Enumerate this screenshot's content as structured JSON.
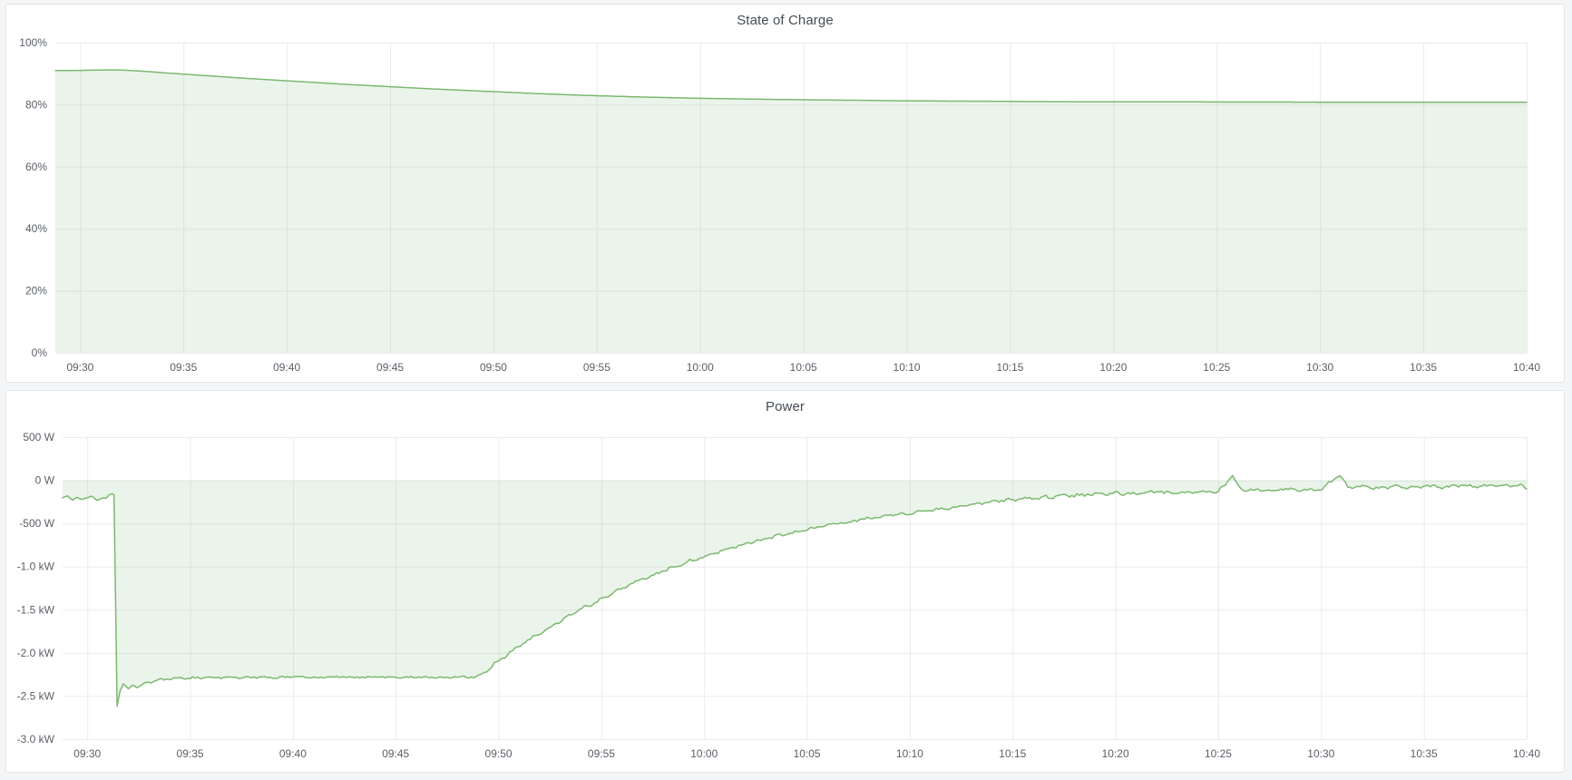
{
  "page": {
    "background": "#f4f5f6",
    "panel_background": "#ffffff",
    "panel_border": "#e3e4e6",
    "grid_color": "#ebebed",
    "axis_text_color": "#5a5f66",
    "title_color": "#464c54",
    "accent_green": "#7cb870"
  },
  "panels": [
    {
      "title": "State of Charge"
    },
    {
      "title": "Power"
    }
  ],
  "chart_data": [
    {
      "type": "area",
      "title": "State of Charge",
      "x_unit": "minutes after 09:30",
      "xlim": [
        -1.2,
        70
      ],
      "ylim": [
        0,
        100
      ],
      "baseline": 0,
      "grid": true,
      "legend": "none",
      "line_color": "#7cb870",
      "fill_color": "rgba(124,184,112,0.15)",
      "x_ticks": [
        {
          "t": 0,
          "label": "09:30"
        },
        {
          "t": 5,
          "label": "09:35"
        },
        {
          "t": 10,
          "label": "09:40"
        },
        {
          "t": 15,
          "label": "09:45"
        },
        {
          "t": 20,
          "label": "09:50"
        },
        {
          "t": 25,
          "label": "09:55"
        },
        {
          "t": 30,
          "label": "10:00"
        },
        {
          "t": 35,
          "label": "10:05"
        },
        {
          "t": 40,
          "label": "10:10"
        },
        {
          "t": 45,
          "label": "10:15"
        },
        {
          "t": 50,
          "label": "10:20"
        },
        {
          "t": 55,
          "label": "10:25"
        },
        {
          "t": 60,
          "label": "10:30"
        },
        {
          "t": 65,
          "label": "10:35"
        },
        {
          "t": 70,
          "label": "10:40"
        }
      ],
      "y_ticks": [
        {
          "v": 100,
          "label": "100%"
        },
        {
          "v": 80,
          "label": "80%"
        },
        {
          "v": 60,
          "label": "60%"
        },
        {
          "v": 40,
          "label": "40%"
        },
        {
          "v": 20,
          "label": "20%"
        },
        {
          "v": 0,
          "label": "0%"
        }
      ],
      "noise_segments": [],
      "series": [
        {
          "name": "State of Charge (%)",
          "points": [
            [
              -1.2,
              91.0
            ],
            [
              0,
              91.05
            ],
            [
              0.8,
              91.15
            ],
            [
              1.6,
              91.2
            ],
            [
              2.2,
              91.1
            ],
            [
              3,
              90.8
            ],
            [
              4,
              90.3
            ],
            [
              5,
              89.85
            ],
            [
              6,
              89.4
            ],
            [
              7,
              88.95
            ],
            [
              8,
              88.5
            ],
            [
              9,
              88.1
            ],
            [
              10,
              87.7
            ],
            [
              11,
              87.3
            ],
            [
              12,
              86.9
            ],
            [
              13,
              86.5
            ],
            [
              14,
              86.15
            ],
            [
              15,
              85.8
            ],
            [
              16,
              85.45
            ],
            [
              17,
              85.1
            ],
            [
              18,
              84.8
            ],
            [
              19,
              84.5
            ],
            [
              20,
              84.2
            ],
            [
              21,
              83.9
            ],
            [
              22,
              83.6
            ],
            [
              23,
              83.35
            ],
            [
              24,
              83.1
            ],
            [
              25,
              82.9
            ],
            [
              26,
              82.7
            ],
            [
              27,
              82.5
            ],
            [
              28,
              82.35
            ],
            [
              29,
              82.2
            ],
            [
              30,
              82.05
            ],
            [
              31,
              81.95
            ],
            [
              32,
              81.85
            ],
            [
              33,
              81.75
            ],
            [
              34,
              81.65
            ],
            [
              35,
              81.6
            ],
            [
              36,
              81.5
            ],
            [
              37,
              81.45
            ],
            [
              38,
              81.4
            ],
            [
              39,
              81.3
            ],
            [
              40,
              81.25
            ],
            [
              42,
              81.15
            ],
            [
              44,
              81.1
            ],
            [
              46,
              81.0
            ],
            [
              48,
              80.95
            ],
            [
              50,
              80.95
            ],
            [
              52,
              80.9
            ],
            [
              54,
              80.9
            ],
            [
              56,
              80.85
            ],
            [
              58,
              80.85
            ],
            [
              60,
              80.8
            ],
            [
              62,
              80.8
            ],
            [
              64,
              80.8
            ],
            [
              66,
              80.8
            ],
            [
              68,
              80.8
            ],
            [
              70,
              80.8
            ]
          ]
        }
      ]
    },
    {
      "type": "area",
      "title": "Power",
      "x_unit": "minutes after 09:30",
      "xlim": [
        -1.2,
        70
      ],
      "ylim": [
        -3000,
        500
      ],
      "baseline": 0,
      "grid": true,
      "legend": "none",
      "line_color": "#7cb870",
      "fill_color": "rgba(124,184,112,0.15)",
      "x_ticks": [
        {
          "t": 0,
          "label": "09:30"
        },
        {
          "t": 5,
          "label": "09:35"
        },
        {
          "t": 10,
          "label": "09:40"
        },
        {
          "t": 15,
          "label": "09:45"
        },
        {
          "t": 20,
          "label": "09:50"
        },
        {
          "t": 25,
          "label": "09:55"
        },
        {
          "t": 30,
          "label": "10:00"
        },
        {
          "t": 35,
          "label": "10:05"
        },
        {
          "t": 40,
          "label": "10:10"
        },
        {
          "t": 45,
          "label": "10:15"
        },
        {
          "t": 50,
          "label": "10:20"
        },
        {
          "t": 55,
          "label": "10:25"
        },
        {
          "t": 60,
          "label": "10:30"
        },
        {
          "t": 65,
          "label": "10:35"
        },
        {
          "t": 70,
          "label": "10:40"
        }
      ],
      "y_ticks": [
        {
          "v": 500,
          "label": "500 W"
        },
        {
          "v": 0,
          "label": "0 W"
        },
        {
          "v": -500,
          "label": "-500 W"
        },
        {
          "v": -1000,
          "label": "-1.0 kW"
        },
        {
          "v": -1500,
          "label": "-1.5 kW"
        },
        {
          "v": -2000,
          "label": "-2.0 kW"
        },
        {
          "v": -2500,
          "label": "-2.5 kW"
        },
        {
          "v": -3000,
          "label": "-3.0 kW"
        }
      ],
      "noise_segments": [
        [
          -1.2,
          1.25,
          16
        ],
        [
          1.5,
          18.8,
          18
        ],
        [
          19.3,
          43,
          26
        ],
        [
          43,
          55.4,
          30
        ],
        [
          56.0,
          70,
          26
        ]
      ],
      "series": [
        {
          "name": "Power (W)",
          "points": [
            [
              -1.2,
              -205
            ],
            [
              -0.95,
              -185
            ],
            [
              -0.7,
              -230
            ],
            [
              -0.5,
              -200
            ],
            [
              -0.25,
              -215
            ],
            [
              0,
              -200
            ],
            [
              0.2,
              -185
            ],
            [
              0.45,
              -225
            ],
            [
              0.7,
              -200
            ],
            [
              0.9,
              -205
            ],
            [
              1.05,
              -175
            ],
            [
              1.2,
              -150
            ],
            [
              1.3,
              -170
            ],
            [
              1.45,
              -2620
            ],
            [
              1.6,
              -2440
            ],
            [
              1.75,
              -2360
            ],
            [
              2.0,
              -2420
            ],
            [
              2.2,
              -2380
            ],
            [
              2.5,
              -2400
            ],
            [
              2.8,
              -2350
            ],
            [
              3.2,
              -2330
            ],
            [
              3.6,
              -2310
            ],
            [
              4.2,
              -2295
            ],
            [
              5,
              -2290
            ],
            [
              6,
              -2285
            ],
            [
              7,
              -2290
            ],
            [
              8,
              -2280
            ],
            [
              9,
              -2285
            ],
            [
              10,
              -2278
            ],
            [
              11,
              -2288
            ],
            [
              12,
              -2280
            ],
            [
              13,
              -2285
            ],
            [
              14,
              -2278
            ],
            [
              15,
              -2284
            ],
            [
              16,
              -2280
            ],
            [
              17,
              -2285
            ],
            [
              18,
              -2280
            ],
            [
              18.8,
              -2282
            ],
            [
              19.3,
              -2230
            ],
            [
              19.8,
              -2130
            ],
            [
              20.3,
              -2040
            ],
            [
              20.8,
              -1960
            ],
            [
              21.3,
              -1880
            ],
            [
              21.8,
              -1800
            ],
            [
              22.3,
              -1730
            ],
            [
              22.8,
              -1660
            ],
            [
              23.3,
              -1590
            ],
            [
              23.8,
              -1520
            ],
            [
              24.3,
              -1460
            ],
            [
              24.8,
              -1400
            ],
            [
              25.3,
              -1340
            ],
            [
              25.8,
              -1280
            ],
            [
              26.3,
              -1220
            ],
            [
              26.8,
              -1170
            ],
            [
              27.3,
              -1120
            ],
            [
              27.8,
              -1070
            ],
            [
              28.3,
              -1020
            ],
            [
              28.8,
              -975
            ],
            [
              29.3,
              -935
            ],
            [
              29.8,
              -895
            ],
            [
              30.3,
              -855
            ],
            [
              30.8,
              -820
            ],
            [
              31.3,
              -785
            ],
            [
              31.8,
              -750
            ],
            [
              32.3,
              -720
            ],
            [
              32.8,
              -690
            ],
            [
              33.3,
              -660
            ],
            [
              33.8,
              -632
            ],
            [
              34.3,
              -605
            ],
            [
              34.8,
              -580
            ],
            [
              35.3,
              -556
            ],
            [
              35.8,
              -532
            ],
            [
              36.3,
              -510
            ],
            [
              36.8,
              -490
            ],
            [
              37.3,
              -470
            ],
            [
              37.8,
              -452
            ],
            [
              38.3,
              -435
            ],
            [
              38.8,
              -418
            ],
            [
              39.3,
              -402
            ],
            [
              39.8,
              -388
            ],
            [
              40.5,
              -365
            ],
            [
              41.2,
              -342
            ],
            [
              42,
              -318
            ],
            [
              42.8,
              -295
            ],
            [
              43.4,
              -272
            ],
            [
              44,
              -250
            ],
            [
              44.8,
              -232
            ],
            [
              45.6,
              -215
            ],
            [
              46.4,
              -200
            ],
            [
              47.2,
              -188
            ],
            [
              48,
              -176
            ],
            [
              49,
              -163
            ],
            [
              50,
              -150
            ],
            [
              51,
              -160
            ],
            [
              52,
              -135
            ],
            [
              53,
              -150
            ],
            [
              54,
              -125
            ],
            [
              55,
              -140
            ],
            [
              55.7,
              55
            ],
            [
              56.1,
              -115
            ],
            [
              56.8,
              -105
            ],
            [
              57.6,
              -120
            ],
            [
              58.4,
              -100
            ],
            [
              59.2,
              -112
            ],
            [
              60,
              -100
            ],
            [
              60.9,
              65
            ],
            [
              61.3,
              -85
            ],
            [
              62,
              -75
            ],
            [
              62.8,
              -88
            ],
            [
              63.6,
              -70
            ],
            [
              64.4,
              -82
            ],
            [
              65.2,
              -68
            ],
            [
              66,
              -78
            ],
            [
              66.8,
              -62
            ],
            [
              67.6,
              -74
            ],
            [
              68.4,
              -58
            ],
            [
              69.2,
              -68
            ],
            [
              69.7,
              -45
            ],
            [
              70,
              -100
            ]
          ]
        }
      ]
    }
  ]
}
